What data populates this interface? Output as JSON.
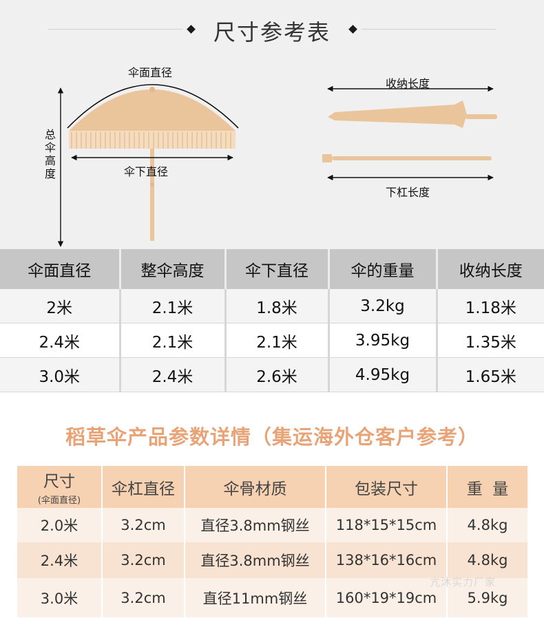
{
  "heading": {
    "title": "尺寸参考表"
  },
  "diagram": {
    "canopy_diameter": "伞面直径",
    "total_height": "总伞高度",
    "under_diameter": "伞下直径",
    "folded_length": "收纳长度",
    "pole_length": "下杠长度"
  },
  "table1": {
    "headers": [
      "伞面直径",
      "整伞高度",
      "伞下直径",
      "伞的重量",
      "收纳长度"
    ],
    "rows": [
      [
        "2米",
        "2.1米",
        "1.8米",
        "3.2kg",
        "1.18米"
      ],
      [
        "2.4米",
        "2.1米",
        "2.1米",
        "3.95kg",
        "1.35米"
      ],
      [
        "3.0米",
        "2.4米",
        "2.6米",
        "4.95kg",
        "1.65米"
      ]
    ]
  },
  "section2": {
    "title": "稻草伞产品参数详情（集运海外仓客户参考）"
  },
  "table2": {
    "headers": [
      "尺寸",
      "伞杠直径",
      "伞骨材质",
      "包装尺寸",
      "重  量"
    ],
    "header_sub": "(伞面直径)",
    "rows": [
      [
        "2.0米",
        "3.2cm",
        "直径3.8mm钢丝",
        "118*15*15cm",
        "4.8kg"
      ],
      [
        "2.4米",
        "3.2cm",
        "直径3.8mm钢丝",
        "138*16*16cm",
        "4.8kg"
      ],
      [
        "3.0米",
        "3.2cm",
        "直径11mm钢丝",
        "160*19*19cm",
        "5.9kg"
      ]
    ]
  },
  "watermark": "亢沐实力厂家",
  "colors": {
    "straw": "#eac59b",
    "accent": "#e8a377",
    "header_peach": "#f6d2b2"
  }
}
